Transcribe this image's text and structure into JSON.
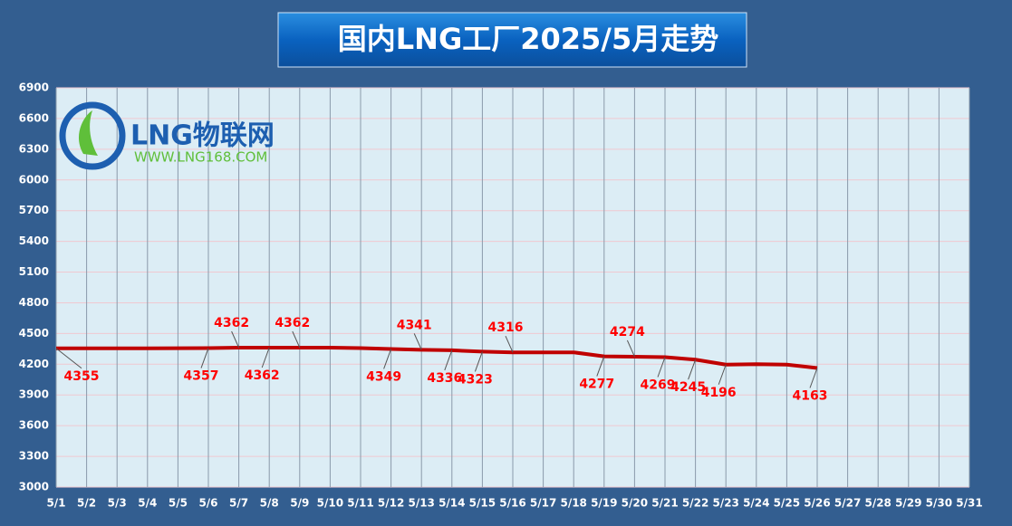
{
  "chart_data": {
    "type": "line",
    "title": "国内LNG工厂2025/5月走势",
    "logo": {
      "text": "LNG物联网",
      "url": "WWW.LNG168.COM"
    },
    "categories": [
      "5/1",
      "5/2",
      "5/3",
      "5/4",
      "5/5",
      "5/6",
      "5/7",
      "5/8",
      "5/9",
      "5/10",
      "5/11",
      "5/12",
      "5/13",
      "5/14",
      "5/15",
      "5/16",
      "5/17",
      "5/18",
      "5/19",
      "5/20",
      "5/21",
      "5/22",
      "5/23",
      "5/24",
      "5/25",
      "5/26",
      "5/27",
      "5/28",
      "5/29",
      "5/30",
      "5/31"
    ],
    "series": [
      {
        "name": "LNG",
        "color": "#c00000",
        "values": [
          4355,
          4355,
          4355,
          4355,
          4356,
          4357,
          4362,
          4362,
          4362,
          4362,
          4358,
          4349,
          4341,
          4336,
          4323,
          4316,
          4316,
          4316,
          4277,
          4274,
          4269,
          4245,
          4196,
          4200,
          4196,
          4163,
          null,
          null,
          null,
          null,
          null
        ],
        "value_labels": [
          "4355",
          null,
          null,
          null,
          null,
          "4357",
          "4362",
          "4362",
          "4362",
          null,
          null,
          "4349",
          "4341",
          "4336",
          "4323",
          "4316",
          null,
          null,
          "4277",
          "4274",
          "4269",
          "4245",
          "4196",
          null,
          null,
          "4163",
          null,
          null,
          null,
          null,
          null
        ]
      }
    ],
    "ylim": [
      3000,
      6900
    ],
    "yticks": [
      3000,
      3300,
      3600,
      3900,
      4200,
      4500,
      4800,
      5100,
      5400,
      5700,
      6000,
      6300,
      6600,
      6900
    ],
    "grid": true
  }
}
